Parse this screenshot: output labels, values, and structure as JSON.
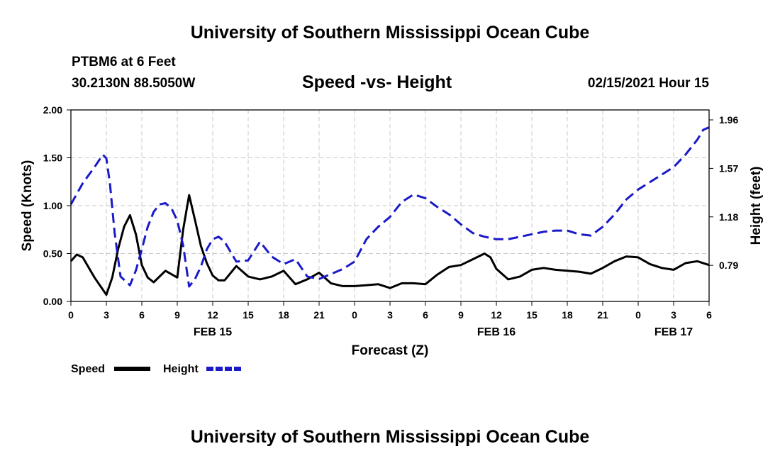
{
  "header": {
    "title": "University of Southern Mississippi Ocean Cube"
  },
  "footer": {
    "title": "University of Southern Mississippi Ocean Cube"
  },
  "station": {
    "name": "PTBM6 at 6 Feet",
    "coords": "30.2130N 88.5050W",
    "datetime": "02/15/2021 Hour 15"
  },
  "colors": {
    "speed": "#000000",
    "height": "#1a1ac8",
    "grid": "#c8c8c8"
  },
  "chart_data": {
    "type": "line",
    "title": "Speed -vs- Height",
    "xlabel": "Forecast (Z)",
    "ylabel_left": "Speed (Knots)",
    "ylabel_right": "Height (feet)",
    "xlim": [
      0,
      54
    ],
    "ylim_left": [
      0,
      2.0
    ],
    "ylim_right": [
      0.5,
      2.04
    ],
    "x_ticks": [
      {
        "x": 0,
        "label": "0"
      },
      {
        "x": 3,
        "label": "3"
      },
      {
        "x": 6,
        "label": "6"
      },
      {
        "x": 9,
        "label": "9"
      },
      {
        "x": 12,
        "label": "12"
      },
      {
        "x": 15,
        "label": "15"
      },
      {
        "x": 18,
        "label": "18"
      },
      {
        "x": 21,
        "label": "21"
      },
      {
        "x": 24,
        "label": "0"
      },
      {
        "x": 27,
        "label": "3"
      },
      {
        "x": 30,
        "label": "6"
      },
      {
        "x": 33,
        "label": "9"
      },
      {
        "x": 36,
        "label": "12"
      },
      {
        "x": 39,
        "label": "15"
      },
      {
        "x": 42,
        "label": "18"
      },
      {
        "x": 45,
        "label": "21"
      },
      {
        "x": 48,
        "label": "0"
      },
      {
        "x": 51,
        "label": "3"
      },
      {
        "x": 54,
        "label": "6"
      }
    ],
    "date_labels": [
      {
        "x": 12,
        "label": "FEB 15"
      },
      {
        "x": 36,
        "label": "FEB 16"
      },
      {
        "x": 51,
        "label": "FEB 17"
      }
    ],
    "left_ticks": [
      {
        "v": 0.0,
        "label": "0.00"
      },
      {
        "v": 0.5,
        "label": "0.50"
      },
      {
        "v": 1.0,
        "label": "1.00"
      },
      {
        "v": 1.5,
        "label": "1.50"
      },
      {
        "v": 2.0,
        "label": "2.00"
      }
    ],
    "right_ticks": [
      {
        "v": 0.79,
        "label": "0.79"
      },
      {
        "v": 1.18,
        "label": "1.18"
      },
      {
        "v": 1.57,
        "label": "1.57"
      },
      {
        "v": 1.96,
        "label": "1.96"
      }
    ],
    "series": [
      {
        "name": "Speed",
        "axis": "left",
        "style": "solid",
        "x": [
          0,
          0.5,
          1,
          2,
          3,
          3.5,
          4,
          4.5,
          5,
          5.5,
          6,
          6.5,
          7,
          8,
          9,
          9.5,
          10,
          10.5,
          11,
          11.5,
          12,
          12.5,
          13,
          14,
          15,
          16,
          17,
          18,
          19,
          20,
          21,
          22,
          23,
          24,
          25,
          26,
          27,
          28,
          29,
          30,
          31,
          32,
          33,
          34,
          35,
          35.5,
          36,
          37,
          38,
          39,
          40,
          41,
          42,
          43,
          44,
          45,
          46,
          47,
          48,
          49,
          50,
          51,
          52,
          53,
          54
        ],
        "values": [
          0.42,
          0.49,
          0.46,
          0.25,
          0.07,
          0.25,
          0.55,
          0.78,
          0.9,
          0.7,
          0.38,
          0.25,
          0.2,
          0.32,
          0.25,
          0.75,
          1.11,
          0.85,
          0.58,
          0.4,
          0.27,
          0.22,
          0.22,
          0.37,
          0.26,
          0.23,
          0.26,
          0.32,
          0.18,
          0.23,
          0.3,
          0.19,
          0.16,
          0.16,
          0.17,
          0.18,
          0.14,
          0.19,
          0.19,
          0.18,
          0.28,
          0.36,
          0.38,
          0.44,
          0.5,
          0.46,
          0.34,
          0.23,
          0.26,
          0.33,
          0.35,
          0.33,
          0.32,
          0.31,
          0.29,
          0.35,
          0.42,
          0.47,
          0.46,
          0.39,
          0.35,
          0.33,
          0.4,
          0.42,
          0.38
        ]
      },
      {
        "name": "Height",
        "axis": "right",
        "style": "dashed",
        "x": [
          0,
          1,
          2,
          2.7,
          3,
          3.3,
          3.7,
          4.2,
          5,
          5.5,
          6,
          6.5,
          7,
          7.5,
          8,
          8.5,
          9,
          9.5,
          10,
          10.5,
          11,
          11.5,
          12,
          12.5,
          13,
          14,
          15,
          16,
          17,
          18,
          19,
          20,
          21,
          22,
          23,
          24,
          25,
          26,
          27,
          28,
          29,
          30,
          31,
          32,
          33,
          34,
          35,
          36,
          37,
          38,
          39,
          40,
          41,
          42,
          43,
          44,
          45,
          46,
          47,
          48,
          49,
          50,
          51,
          52,
          53,
          53.5,
          54
        ],
        "values": [
          1.28,
          1.45,
          1.58,
          1.68,
          1.65,
          1.45,
          1.05,
          0.7,
          0.63,
          0.75,
          0.92,
          1.1,
          1.22,
          1.28,
          1.29,
          1.25,
          1.15,
          0.95,
          0.62,
          0.68,
          0.78,
          0.92,
          1.0,
          1.02,
          0.98,
          0.82,
          0.83,
          0.98,
          0.86,
          0.8,
          0.84,
          0.7,
          0.68,
          0.72,
          0.76,
          0.82,
          1.0,
          1.1,
          1.18,
          1.3,
          1.36,
          1.33,
          1.26,
          1.2,
          1.12,
          1.05,
          1.02,
          1.0,
          1.0,
          1.02,
          1.04,
          1.06,
          1.07,
          1.07,
          1.04,
          1.03,
          1.1,
          1.2,
          1.32,
          1.4,
          1.46,
          1.52,
          1.58,
          1.68,
          1.8,
          1.88,
          1.9
        ]
      }
    ],
    "legend": [
      {
        "label": "Speed"
      },
      {
        "label": "Height"
      }
    ]
  }
}
